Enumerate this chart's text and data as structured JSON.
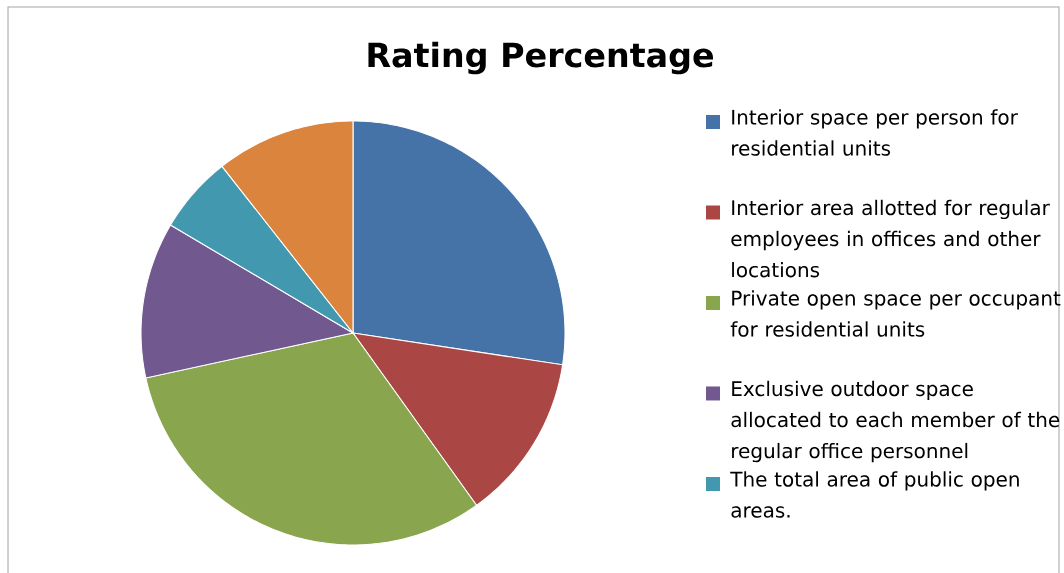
{
  "chart_data": {
    "type": "pie",
    "title": "Rating Percentage",
    "categories": [
      "Interior space per person for residential units",
      "Interior area allotted for regular employees in offices and other locations",
      "Private open space per occupant for residential units",
      "Exclusive outdoor space allocated to each member of the regular office personnel",
      "The total area of public open areas.",
      null
    ],
    "values": [
      27.4,
      12.7,
      31.5,
      11.9,
      5.9,
      10.6
    ],
    "colors": [
      "#4572a7",
      "#aa4643",
      "#89a54e",
      "#71588f",
      "#4198af",
      "#db843d"
    ],
    "legend": "right"
  }
}
